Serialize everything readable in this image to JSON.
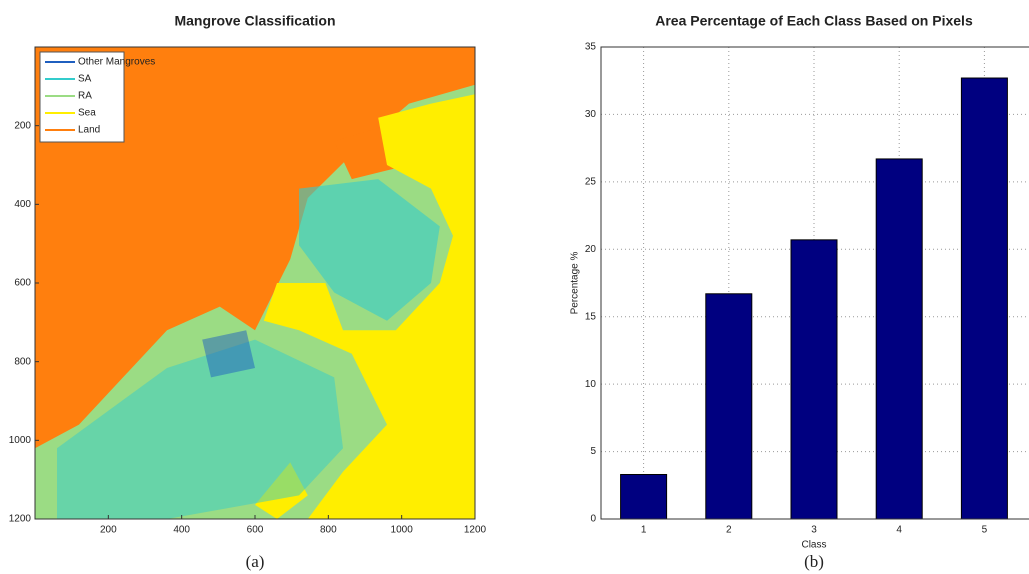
{
  "chart_data": [
    {
      "type": "raster",
      "title": "Mangrove Classification",
      "caption": "(a)",
      "xlim": [
        0,
        1200
      ],
      "ylim": [
        0,
        1200
      ],
      "y_inverted": true,
      "xticks": [
        200,
        400,
        600,
        800,
        1000,
        1200
      ],
      "yticks": [
        200,
        400,
        600,
        800,
        1000,
        1200
      ],
      "legend": "upper left",
      "series": [
        {
          "name": "Other Mangroves",
          "color": "#1f5fbf"
        },
        {
          "name": "SA",
          "color": "#33cccc"
        },
        {
          "name": "RA",
          "color": "#9bdc84"
        },
        {
          "name": "Sea",
          "color": "#ffee00"
        },
        {
          "name": "Land",
          "color": "#ff7f0e"
        }
      ]
    },
    {
      "type": "bar",
      "title": "Area Percentage of Each Class Based on Pixels",
      "caption": "(b)",
      "x_label": "Class",
      "y_label": "Percentage %",
      "categories": [
        "1",
        "2",
        "3",
        "4",
        "5"
      ],
      "values": [
        3.3,
        16.7,
        20.7,
        26.7,
        32.7
      ],
      "color": "#000080",
      "ylim": [
        0,
        35
      ],
      "yticks": [
        0,
        5,
        10,
        15,
        20,
        25,
        30,
        35
      ],
      "grid": true
    }
  ]
}
